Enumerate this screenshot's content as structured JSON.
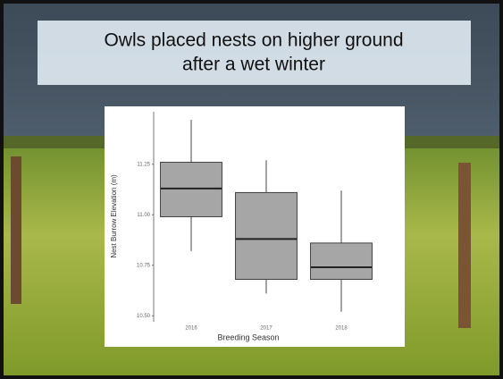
{
  "slide_title": "Owls placed nests on higher ground after a wet winter",
  "chart_data": {
    "type": "box",
    "x_label": "Breeding Season",
    "y_label": "Nest Burrow Elevation (m)",
    "categories": [
      "2016",
      "2017",
      "2018"
    ],
    "whisker_low": [
      10.82,
      10.61,
      10.52
    ],
    "q1": [
      10.99,
      10.68,
      10.68
    ],
    "median": [
      11.13,
      10.88,
      10.74
    ],
    "q3": [
      11.26,
      11.11,
      10.86
    ],
    "whisker_high": [
      11.47,
      11.27,
      11.12
    ],
    "color": "#a6a6a6",
    "ylim": [
      10.47,
      11.51
    ],
    "yticks": [
      {
        "value": 10.5,
        "label": "10.50"
      },
      {
        "value": 10.75,
        "label": "10.75"
      },
      {
        "value": 11,
        "label": "11.00"
      },
      {
        "value": 11.25,
        "label": "11.25"
      }
    ],
    "grid": false
  }
}
